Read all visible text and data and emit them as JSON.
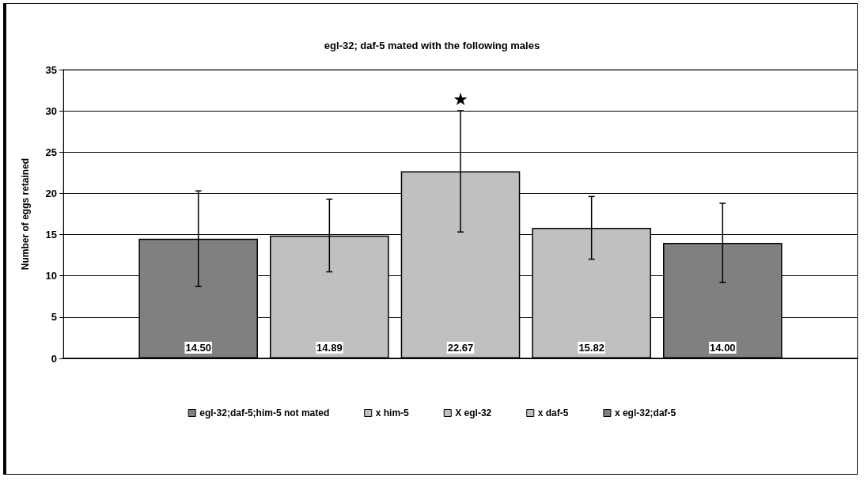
{
  "chart_data": {
    "type": "bar",
    "title": "egl-32; daf-5 mated with the following males",
    "ylabel": "Number of eggs retained",
    "categories": [
      null
    ],
    "series": [
      {
        "name": "egl-32;daf-5;him-5 not mated",
        "color": "#808080",
        "values": [
          14.5
        ],
        "errors": [
          5.8
        ],
        "value_labels": [
          "14.50"
        ]
      },
      {
        "name": "x him-5",
        "color": "#c0c0c0",
        "values": [
          14.89
        ],
        "errors": [
          4.4
        ],
        "value_labels": [
          "14.89"
        ]
      },
      {
        "name": "X egl-32",
        "color": "#c0c0c0",
        "values": [
          22.67
        ],
        "errors": [
          7.35
        ],
        "value_labels": [
          "22.67"
        ]
      },
      {
        "name": "x daf-5",
        "color": "#c0c0c0",
        "values": [
          15.82
        ],
        "errors": [
          3.8
        ],
        "value_labels": [
          "15.82"
        ]
      },
      {
        "name": "x egl-32;daf-5",
        "color": "#808080",
        "values": [
          14.0
        ],
        "errors": [
          4.8
        ],
        "value_labels": [
          "14.00"
        ]
      }
    ],
    "annotations": [
      "★"
    ],
    "ylim": [
      0,
      35
    ],
    "yticks": [
      0,
      5,
      10,
      15,
      20,
      25,
      30,
      35
    ],
    "grid": "y",
    "legend": "bottom"
  }
}
